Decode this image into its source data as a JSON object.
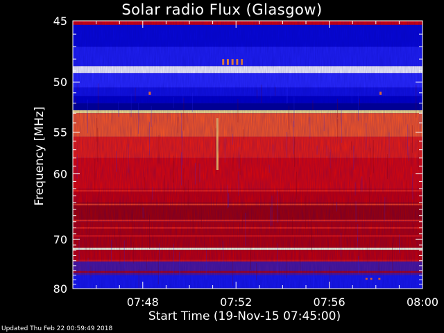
{
  "chart_data": {
    "type": "heatmap",
    "title": "Solar radio Flux (Glasgow)",
    "xlabel": "Start Time (19-Nov-15 07:45:00)",
    "ylabel": "Frequency [MHz]",
    "x_ticks": [
      "07:48",
      "07:52",
      "07:56",
      "08:00"
    ],
    "x_tick_minutes": [
      3,
      7,
      11,
      15
    ],
    "xlim_minutes": [
      0,
      15
    ],
    "y_ticks": [
      45,
      50,
      55,
      60,
      70,
      80
    ],
    "ylim": [
      45,
      80
    ],
    "y_scale": "reciprocal",
    "grid": false,
    "colormap": [
      "#000030",
      "#0000cc",
      "#2a2aff",
      "#880000",
      "#dd0000",
      "#ff3010",
      "#ff9030",
      "#ffff99",
      "#ffffff"
    ],
    "bands": [
      {
        "freq": [
          44.7,
          45.3
        ],
        "level": 0.5
      },
      {
        "freq": [
          45.3,
          47.0
        ],
        "level": 0.15
      },
      {
        "freq": [
          47.0,
          48.6
        ],
        "level": 0.22
      },
      {
        "freq": [
          48.6,
          49.2
        ],
        "level": 1.0
      },
      {
        "freq": [
          49.2,
          50.5
        ],
        "level": 0.25
      },
      {
        "freq": [
          50.5,
          51.3
        ],
        "level": 0.18
      },
      {
        "freq": [
          51.3,
          52.0
        ],
        "level": 0.12
      },
      {
        "freq": [
          52.0,
          52.7
        ],
        "level": 0.08
      },
      {
        "freq": [
          52.7,
          53.0
        ],
        "level": 0.85
      },
      {
        "freq": [
          53.0,
          55.5
        ],
        "level": 0.68
      },
      {
        "freq": [
          55.5,
          58.0
        ],
        "level": 0.58
      },
      {
        "freq": [
          58.0,
          62.0
        ],
        "level": 0.52
      },
      {
        "freq": [
          62.0,
          64.0
        ],
        "level": 0.48
      },
      {
        "freq": [
          64.0,
          67.0
        ],
        "level": 0.42
      },
      {
        "freq": [
          67.0,
          71.5
        ],
        "level": 0.45
      },
      {
        "freq": [
          71.5,
          71.9
        ],
        "level": 0.95
      },
      {
        "freq": [
          71.9,
          74.0
        ],
        "level": 0.47
      },
      {
        "freq": [
          74.0,
          77.0
        ],
        "level": 0.3
      },
      {
        "freq": [
          77.0,
          80.5
        ],
        "level": 0.2
      }
    ],
    "lines": [
      {
        "freq": 62.3,
        "level": 0.6
      },
      {
        "freq": 64.3,
        "level": 0.65
      },
      {
        "freq": 66.8,
        "level": 0.62
      },
      {
        "freq": 68.0,
        "level": 0.6
      },
      {
        "freq": 69.4,
        "level": 0.55
      },
      {
        "freq": 74.0,
        "level": 0.55
      },
      {
        "freq": 76.3,
        "level": 0.45
      }
    ],
    "features": [
      {
        "minute": 6.2,
        "freq": [
          53.5,
          59.5
        ],
        "level": 0.8
      },
      {
        "minute": 6.45,
        "freq": [
          48.0,
          48.5
        ],
        "level": 0.75
      },
      {
        "minute": 6.65,
        "freq": [
          48.0,
          48.5
        ],
        "level": 0.75
      },
      {
        "minute": 6.85,
        "freq": [
          48.0,
          48.5
        ],
        "level": 0.75
      },
      {
        "minute": 7.05,
        "freq": [
          48.0,
          48.5
        ],
        "level": 0.75
      },
      {
        "minute": 7.25,
        "freq": [
          48.0,
          48.5
        ],
        "level": 0.75
      },
      {
        "minute": 3.3,
        "freq": [
          50.9,
          51.2
        ],
        "level": 0.72
      },
      {
        "minute": 13.2,
        "freq": [
          50.9,
          51.2
        ],
        "level": 0.72
      },
      {
        "minute": 12.6,
        "freq": [
          77.6,
          78.0
        ],
        "level": 0.7
      },
      {
        "minute": 12.8,
        "freq": [
          77.6,
          78.0
        ],
        "level": 0.7
      },
      {
        "minute": 13.15,
        "freq": [
          77.6,
          78.0
        ],
        "level": 0.7
      }
    ]
  },
  "footer": "Updated Thu Feb 22 00:59:49 2018"
}
